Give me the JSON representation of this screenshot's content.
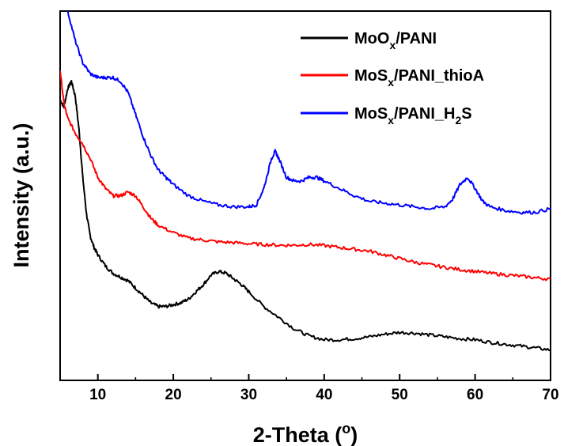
{
  "chart_data": {
    "type": "line",
    "xlabel_main": "2-Theta (",
    "xlabel_sup": "o",
    "xlabel_end": ")",
    "ylabel": "Intensity (a.u.)",
    "xlim": [
      5,
      70
    ],
    "ylim": [
      0,
      100
    ],
    "y_ticks_labeled": false,
    "x_ticks": [
      10,
      20,
      30,
      40,
      50,
      60,
      70
    ],
    "x_tick_labels": [
      "10",
      "20",
      "30",
      "40",
      "50",
      "60",
      "70"
    ],
    "grid": false,
    "legend_position": "top-right",
    "series": [
      {
        "name": "MoOx/PANI",
        "legend": {
          "base": "MoO",
          "sub": "x",
          "rest": "/PANI"
        },
        "color": "#000000",
        "x": [
          5,
          5.5,
          6,
          6.5,
          7,
          7.5,
          8,
          8.5,
          9,
          9.5,
          10,
          11,
          12,
          13,
          14,
          15,
          16,
          17,
          18,
          19,
          20,
          21,
          22,
          23,
          24,
          25,
          26,
          27,
          28,
          29,
          30,
          32,
          34,
          36,
          38,
          40,
          42,
          44,
          46,
          48,
          50,
          52,
          54,
          56,
          58,
          60,
          62,
          64,
          66,
          68,
          70
        ],
        "y": [
          76,
          74,
          79,
          81,
          77,
          68,
          55,
          45,
          39,
          36,
          34,
          31,
          29,
          28,
          27,
          25,
          23,
          21,
          20,
          20,
          20.5,
          21,
          22,
          24,
          26,
          28.5,
          29.5,
          29,
          27.5,
          26,
          24,
          20,
          17,
          14,
          12,
          11,
          11,
          11.3,
          11.8,
          12.5,
          13,
          12.8,
          12.3,
          11.8,
          11.3,
          11,
          10.3,
          9.8,
          9.3,
          8.8,
          8.2
        ]
      },
      {
        "name": "MoSx/PANI_thioA",
        "legend": {
          "base": "MoS",
          "sub": "x",
          "rest": "/PANI_thioA"
        },
        "color": "#ff0000",
        "x": [
          5,
          5.5,
          6,
          7,
          8,
          9,
          10,
          11,
          12,
          13,
          14,
          15,
          16,
          17,
          18,
          20,
          22,
          24,
          26,
          28,
          30,
          32,
          34,
          36,
          38,
          40,
          42,
          44,
          46,
          48,
          50,
          52,
          54,
          56,
          58,
          60,
          62,
          64,
          66,
          68,
          70
        ],
        "y": [
          84,
          75,
          71,
          67,
          64,
          60,
          55,
          52,
          50,
          50,
          51,
          50,
          47,
          44,
          42,
          40,
          38.5,
          38,
          37.5,
          37.3,
          37,
          36.8,
          36.6,
          36.6,
          36.8,
          36.5,
          36,
          35.5,
          35,
          34,
          33,
          32,
          31.3,
          30.6,
          30,
          29.5,
          29,
          28.6,
          28.2,
          27.8,
          27.4
        ]
      },
      {
        "name": "MoSx/PANI_H2S",
        "legend": {
          "base": "MoS",
          "sub": "x",
          "rest": "/PANI_H",
          "sub2": "2",
          "rest2": "S"
        },
        "color": "#0000ff",
        "x": [
          5,
          6,
          7,
          8,
          9,
          10,
          11,
          12,
          13,
          14,
          15,
          16,
          17,
          18,
          19,
          20,
          22,
          24,
          26,
          28,
          30,
          31,
          32,
          33,
          33.5,
          34,
          35,
          36,
          37,
          38,
          39,
          40,
          42,
          44,
          46,
          48,
          50,
          52,
          54,
          56,
          57,
          58,
          59,
          60,
          61,
          62,
          64,
          66,
          68,
          70
        ],
        "y": [
          108,
          100,
          92,
          86,
          83,
          82,
          82,
          82,
          81,
          78,
          72,
          66,
          61,
          57,
          55,
          53,
          50,
          48.5,
          47.5,
          47,
          47,
          47.5,
          52,
          60,
          62,
          60,
          55,
          54,
          54,
          55,
          55,
          54,
          52,
          50,
          48.5,
          48,
          47.5,
          47,
          46.5,
          47,
          49,
          53,
          55,
          52,
          48.5,
          47,
          46,
          45.5,
          45.5,
          46.5
        ]
      }
    ]
  }
}
